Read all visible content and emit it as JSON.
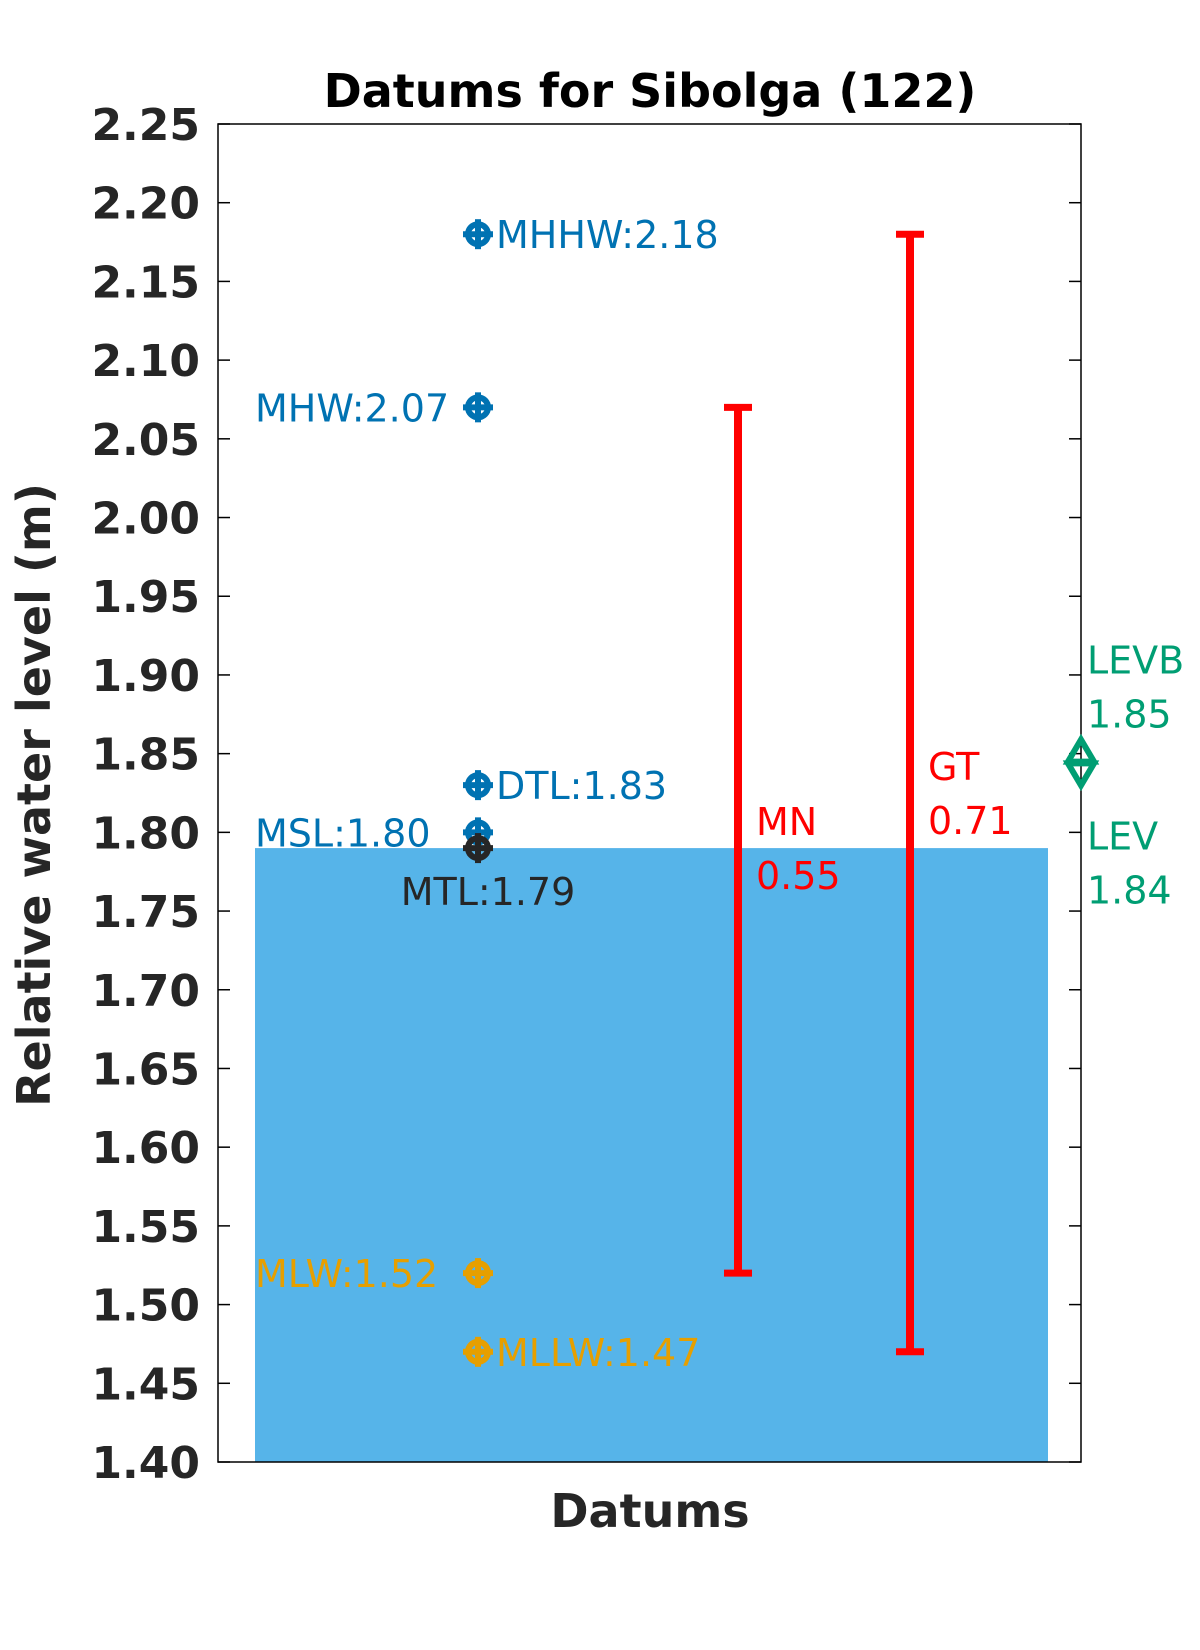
{
  "chart_data": {
    "type": "bar",
    "title": "Datums for Sibolga (122)",
    "xlabel": "Datums",
    "ylabel": "Relative water level (m)",
    "ylim": [
      1.4,
      2.25
    ],
    "yticks": [
      "1.40",
      "1.45",
      "1.50",
      "1.55",
      "1.60",
      "1.65",
      "1.70",
      "1.75",
      "1.80",
      "1.85",
      "1.90",
      "1.95",
      "2.00",
      "2.05",
      "2.10",
      "2.15",
      "2.20",
      "2.25"
    ],
    "grid": false,
    "bar": {
      "value": 1.79,
      "color": "#56b4e9"
    },
    "datums": [
      {
        "name": "MHHW",
        "value": 2.18,
        "label": "MHHW:2.18",
        "color": "#0072b2",
        "label_side": "right"
      },
      {
        "name": "MHW",
        "value": 2.07,
        "label": "MHW:2.07",
        "color": "#0072b2",
        "label_side": "left"
      },
      {
        "name": "DTL",
        "value": 1.83,
        "label": "DTL:1.83",
        "color": "#0072b2",
        "label_side": "right"
      },
      {
        "name": "MSL",
        "value": 1.8,
        "label": "MSL:1.80",
        "color": "#0072b2",
        "label_side": "left"
      },
      {
        "name": "MTL",
        "value": 1.79,
        "label": "MTL:1.79",
        "color": "#262626",
        "label_side": "below"
      },
      {
        "name": "MLW",
        "value": 1.52,
        "label": "MLW:1.52",
        "color": "#e69f00",
        "label_side": "left"
      },
      {
        "name": "MLLW",
        "value": 1.47,
        "label": "MLLW:1.47",
        "color": "#e69f00",
        "label_side": "right"
      }
    ],
    "ranges": [
      {
        "name": "MN",
        "low": 1.52,
        "high": 2.07,
        "label": "MN",
        "value_label": "0.55",
        "color": "#ff0000"
      },
      {
        "name": "GT",
        "low": 1.47,
        "high": 2.18,
        "label": "GT",
        "value_label": "0.71",
        "color": "#ff0000"
      }
    ],
    "levels": [
      {
        "name": "LEVB",
        "value": 1.85,
        "label": "LEVB",
        "value_label": "1.85",
        "color": "#009e73",
        "marker": "triangle-up"
      },
      {
        "name": "LEV",
        "value": 1.84,
        "label": "LEV",
        "value_label": "1.84",
        "color": "#009e73",
        "marker": "triangle-down"
      }
    ]
  }
}
